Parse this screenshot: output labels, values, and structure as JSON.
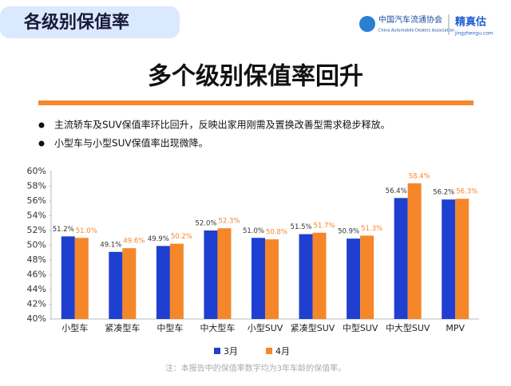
{
  "header": {
    "title": "各级别保值率",
    "org_name": "中国汽车流通协会",
    "org_name_en": "China Automobile Dealers Association",
    "brand": "精真估",
    "brand_url": "jingzhengu.com"
  },
  "heading": "多个级别保值率回升",
  "bullets": [
    "主流轿车及SUV保值率环比回升，反映出家用刚需及置换改善型需求稳步释放。",
    "小型车与小型SUV保值率出现微降。"
  ],
  "footnote": "注：本报告中的保值率数字均为3年车龄的保值率。",
  "chart_data": {
    "type": "bar",
    "categories": [
      "小型车",
      "紧凑型车",
      "中型车",
      "中大型车",
      "小型SUV",
      "紧凑型SUV",
      "中型SUV",
      "中大型SUV",
      "MPV"
    ],
    "series": [
      {
        "name": "3月",
        "color": "#1f3fd0",
        "values": [
          51.2,
          49.1,
          49.9,
          52.0,
          51.0,
          51.5,
          50.9,
          56.4,
          56.2
        ],
        "value_labels": [
          "51.2%",
          "49.1%",
          "49.9%",
          "52.0%",
          "51.0%",
          "51.5%",
          "50.9%",
          "56.4%",
          "56.2%"
        ],
        "label_color": "#333333"
      },
      {
        "name": "4月",
        "color": "#f5872a",
        "values": [
          51.0,
          49.6,
          50.2,
          52.3,
          50.8,
          51.7,
          51.3,
          58.4,
          56.3
        ],
        "value_labels": [
          "51.0%",
          "49.6%",
          "50.2%",
          "52.3%",
          "50.8%",
          "51.7%",
          "51.3%",
          "58.4%",
          "56.3%"
        ],
        "label_color": "#f5872a"
      }
    ],
    "ylim": [
      40,
      60
    ],
    "yticks": [
      {
        "value": 40,
        "label": "40%"
      },
      {
        "value": 42,
        "label": "42%"
      },
      {
        "value": 44,
        "label": "44%"
      },
      {
        "value": 46,
        "label": "46%"
      },
      {
        "value": 48,
        "label": "48%"
      },
      {
        "value": 50,
        "label": "50%"
      },
      {
        "value": 52,
        "label": "52%"
      },
      {
        "value": 54,
        "label": "54%"
      },
      {
        "value": 56,
        "label": "56%"
      },
      {
        "value": 58,
        "label": "58%"
      },
      {
        "value": 60,
        "label": "60%"
      }
    ],
    "legend": "bottom"
  }
}
